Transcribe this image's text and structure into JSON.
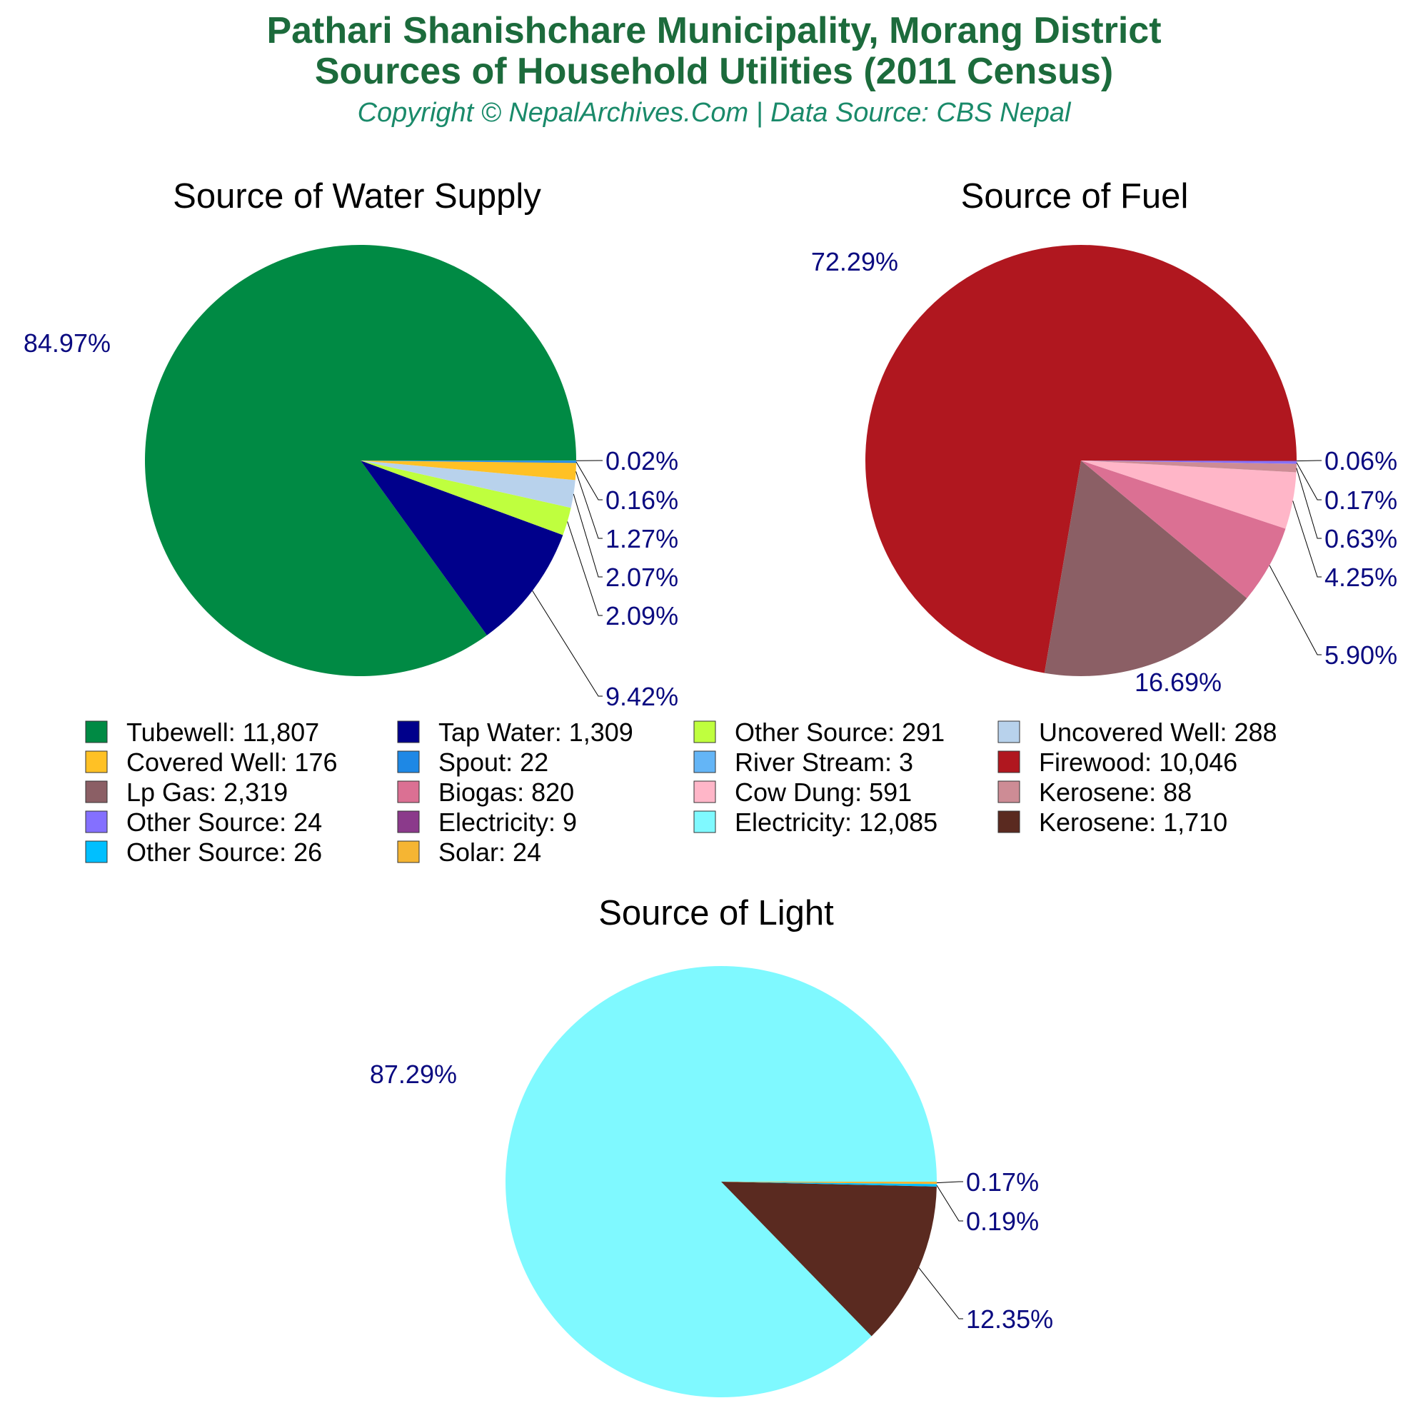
{
  "header": {
    "title_line1": "Pathari Shanishchare Municipality, Morang District",
    "title_line2": "Sources of Household Utilities (2011 Census)",
    "subtitle": "Copyright © NepalArchives.Com | Data Source: CBS Nepal"
  },
  "chart_data": [
    {
      "type": "pie",
      "title": "Source of Water Supply",
      "slices": [
        {
          "name": "Tubewell",
          "value": 11807,
          "percent": "84.97%",
          "color": "#008a44"
        },
        {
          "name": "Tap Water",
          "value": 1309,
          "percent": "9.42%",
          "color": "#00008b"
        },
        {
          "name": "Other Source",
          "value": 291,
          "percent": "2.09%",
          "color": "#bfff3e"
        },
        {
          "name": "Uncovered Well",
          "value": 288,
          "percent": "2.07%",
          "color": "#b8d2ec"
        },
        {
          "name": "Covered Well",
          "value": 176,
          "percent": "1.27%",
          "color": "#ffc125"
        },
        {
          "name": "Spout",
          "value": 22,
          "percent": "0.16%",
          "color": "#1e88e5"
        },
        {
          "name": "River Stream",
          "value": 3,
          "percent": "0.02%",
          "color": "#64b5f6"
        }
      ]
    },
    {
      "type": "pie",
      "title": "Source of Fuel",
      "slices": [
        {
          "name": "Firewood",
          "value": 10046,
          "percent": "72.29%",
          "color": "#b0171f"
        },
        {
          "name": "Lp Gas",
          "value": 2319,
          "percent": "16.69%",
          "color": "#8b5f65"
        },
        {
          "name": "Biogas",
          "value": 820,
          "percent": "5.90%",
          "color": "#db7093"
        },
        {
          "name": "Cow Dung",
          "value": 591,
          "percent": "4.25%",
          "color": "#ffb6c8"
        },
        {
          "name": "Kerosene",
          "value": 88,
          "percent": "0.63%",
          "color": "#cd8c95"
        },
        {
          "name": "Other Source",
          "value": 24,
          "percent": "0.17%",
          "color": "#8470ff"
        },
        {
          "name": "Electricity",
          "value": 9,
          "percent": "0.06%",
          "color": "#8b3a8b"
        }
      ]
    },
    {
      "type": "pie",
      "title": "Source of Light",
      "slices": [
        {
          "name": "Electricity",
          "value": 12085,
          "percent": "87.29%",
          "color": "#7ff9ff"
        },
        {
          "name": "Kerosene",
          "value": 1710,
          "percent": "12.35%",
          "color": "#5a2a20"
        },
        {
          "name": "Other Source",
          "value": 26,
          "percent": "0.19%",
          "color": "#00bfff"
        },
        {
          "name": "Solar",
          "value": 24,
          "percent": "0.17%",
          "color": "#f5b533"
        }
      ]
    }
  ],
  "legend": [
    {
      "label": "Tubewell: 11,807",
      "color": "#008a44"
    },
    {
      "label": "Tap Water: 1,309",
      "color": "#00008b"
    },
    {
      "label": "Other Source: 291",
      "color": "#bfff3e"
    },
    {
      "label": "Uncovered Well: 288",
      "color": "#b8d2ec"
    },
    {
      "label": "Covered Well: 176",
      "color": "#ffc125"
    },
    {
      "label": "Spout: 22",
      "color": "#1e88e5"
    },
    {
      "label": "River Stream: 3",
      "color": "#64b5f6"
    },
    {
      "label": "Firewood: 10,046",
      "color": "#b0171f"
    },
    {
      "label": "Lp Gas: 2,319",
      "color": "#8b5f65"
    },
    {
      "label": "Biogas: 820",
      "color": "#db7093"
    },
    {
      "label": "Cow Dung: 591",
      "color": "#ffb6c8"
    },
    {
      "label": "Kerosene: 88",
      "color": "#cd8c95"
    },
    {
      "label": "Other Source: 24",
      "color": "#8470ff"
    },
    {
      "label": "Electricity: 9",
      "color": "#8b3a8b"
    },
    {
      "label": "Electricity: 12,085",
      "color": "#7ff9ff"
    },
    {
      "label": "Kerosene: 1,710",
      "color": "#5a2a20"
    },
    {
      "label": "Other Source: 26",
      "color": "#00bfff"
    },
    {
      "label": "Solar: 24",
      "color": "#f5b533"
    }
  ]
}
